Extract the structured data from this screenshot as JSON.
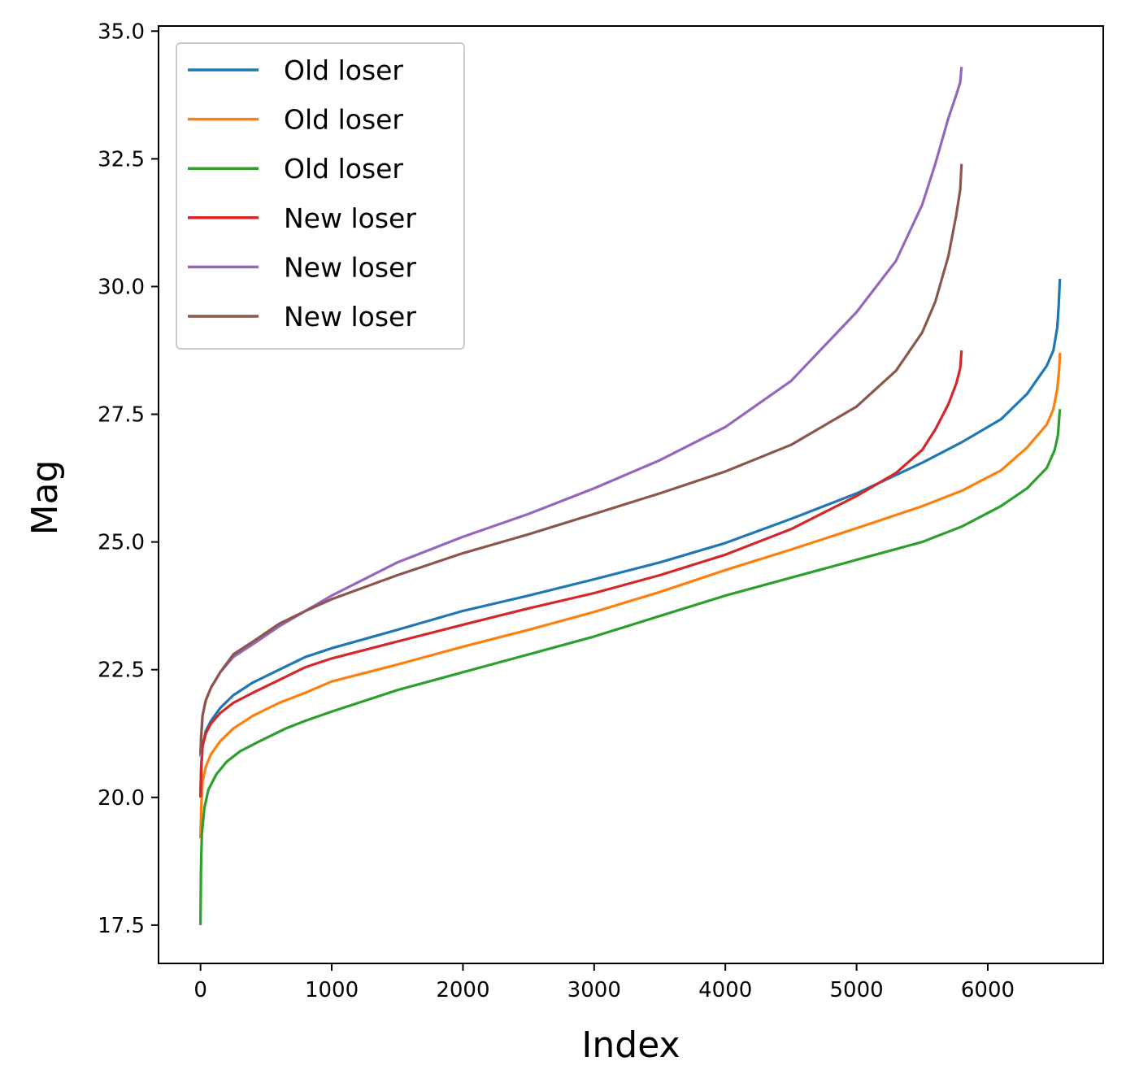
{
  "chart_data": {
    "type": "line",
    "title": "",
    "xlabel": "Index",
    "ylabel": "Mag",
    "xlim": [
      -320,
      6880
    ],
    "ylim": [
      16.75,
      35.1
    ],
    "x_ticks": [
      0,
      1000,
      2000,
      3000,
      4000,
      5000,
      6000
    ],
    "x_tick_labels": [
      "0",
      "1000",
      "2000",
      "3000",
      "4000",
      "5000",
      "6000"
    ],
    "y_ticks": [
      17.5,
      20.0,
      22.5,
      25.0,
      27.5,
      30.0,
      32.5,
      35.0
    ],
    "y_tick_labels": [
      "17.5",
      "20.0",
      "22.5",
      "25.0",
      "27.5",
      "30.0",
      "32.5",
      "35.0"
    ],
    "grid": false,
    "legend_position": "top-left",
    "series": [
      {
        "name": "Old loser",
        "color": "#1f77b4",
        "points": [
          [
            0,
            20.1
          ],
          [
            5,
            20.6
          ],
          [
            15,
            21.0
          ],
          [
            40,
            21.3
          ],
          [
            80,
            21.5
          ],
          [
            150,
            21.75
          ],
          [
            250,
            22.0
          ],
          [
            400,
            22.25
          ],
          [
            600,
            22.5
          ],
          [
            800,
            22.75
          ],
          [
            1000,
            22.92
          ],
          [
            1500,
            23.28
          ],
          [
            2000,
            23.65
          ],
          [
            2500,
            23.95
          ],
          [
            3000,
            24.27
          ],
          [
            3500,
            24.6
          ],
          [
            4000,
            24.98
          ],
          [
            4500,
            25.45
          ],
          [
            5000,
            25.95
          ],
          [
            5500,
            26.55
          ],
          [
            5800,
            26.95
          ],
          [
            6100,
            27.4
          ],
          [
            6300,
            27.9
          ],
          [
            6450,
            28.45
          ],
          [
            6500,
            28.75
          ],
          [
            6530,
            29.2
          ],
          [
            6540,
            29.6
          ],
          [
            6550,
            30.15
          ]
        ]
      },
      {
        "name": "Old loser",
        "color": "#ff7f0e",
        "points": [
          [
            0,
            19.2
          ],
          [
            5,
            19.8
          ],
          [
            15,
            20.3
          ],
          [
            40,
            20.6
          ],
          [
            80,
            20.85
          ],
          [
            150,
            21.1
          ],
          [
            250,
            21.35
          ],
          [
            400,
            21.6
          ],
          [
            600,
            21.85
          ],
          [
            800,
            22.05
          ],
          [
            1000,
            22.27
          ],
          [
            1500,
            22.6
          ],
          [
            2000,
            22.95
          ],
          [
            2500,
            23.28
          ],
          [
            3000,
            23.63
          ],
          [
            3500,
            24.02
          ],
          [
            4000,
            24.45
          ],
          [
            4500,
            24.85
          ],
          [
            5000,
            25.27
          ],
          [
            5500,
            25.7
          ],
          [
            5800,
            26.0
          ],
          [
            6100,
            26.4
          ],
          [
            6300,
            26.85
          ],
          [
            6450,
            27.3
          ],
          [
            6500,
            27.6
          ],
          [
            6530,
            28.0
          ],
          [
            6545,
            28.4
          ],
          [
            6550,
            28.7
          ]
        ]
      },
      {
        "name": "Old loser",
        "color": "#2ca02c",
        "points": [
          [
            0,
            17.5
          ],
          [
            3,
            18.5
          ],
          [
            10,
            19.3
          ],
          [
            30,
            19.8
          ],
          [
            60,
            20.15
          ],
          [
            120,
            20.45
          ],
          [
            200,
            20.7
          ],
          [
            300,
            20.9
          ],
          [
            450,
            21.1
          ],
          [
            650,
            21.35
          ],
          [
            800,
            21.5
          ],
          [
            1000,
            21.68
          ],
          [
            1500,
            22.1
          ],
          [
            2000,
            22.45
          ],
          [
            2500,
            22.8
          ],
          [
            3000,
            23.15
          ],
          [
            3500,
            23.55
          ],
          [
            4000,
            23.95
          ],
          [
            4500,
            24.3
          ],
          [
            5000,
            24.65
          ],
          [
            5500,
            25.0
          ],
          [
            5800,
            25.3
          ],
          [
            6100,
            25.7
          ],
          [
            6300,
            26.05
          ],
          [
            6450,
            26.45
          ],
          [
            6510,
            26.8
          ],
          [
            6535,
            27.1
          ],
          [
            6550,
            27.6
          ]
        ]
      },
      {
        "name": "New loser",
        "color": "#d62728",
        "points": [
          [
            0,
            20.0
          ],
          [
            5,
            20.55
          ],
          [
            15,
            21.0
          ],
          [
            40,
            21.25
          ],
          [
            80,
            21.45
          ],
          [
            150,
            21.65
          ],
          [
            250,
            21.85
          ],
          [
            400,
            22.05
          ],
          [
            600,
            22.3
          ],
          [
            800,
            22.55
          ],
          [
            1000,
            22.72
          ],
          [
            1500,
            23.05
          ],
          [
            2000,
            23.38
          ],
          [
            2500,
            23.7
          ],
          [
            3000,
            24.0
          ],
          [
            3500,
            24.35
          ],
          [
            4000,
            24.75
          ],
          [
            4500,
            25.25
          ],
          [
            5000,
            25.9
          ],
          [
            5300,
            26.35
          ],
          [
            5500,
            26.8
          ],
          [
            5600,
            27.2
          ],
          [
            5700,
            27.7
          ],
          [
            5760,
            28.1
          ],
          [
            5790,
            28.4
          ],
          [
            5800,
            28.75
          ]
        ]
      },
      {
        "name": "New loser",
        "color": "#9467bd",
        "points": [
          [
            0,
            20.8
          ],
          [
            5,
            21.2
          ],
          [
            15,
            21.6
          ],
          [
            40,
            21.9
          ],
          [
            80,
            22.15
          ],
          [
            150,
            22.45
          ],
          [
            250,
            22.75
          ],
          [
            400,
            23.0
          ],
          [
            600,
            23.35
          ],
          [
            800,
            23.65
          ],
          [
            1000,
            23.95
          ],
          [
            1500,
            24.6
          ],
          [
            2000,
            25.1
          ],
          [
            2500,
            25.55
          ],
          [
            3000,
            26.05
          ],
          [
            3500,
            26.6
          ],
          [
            4000,
            27.25
          ],
          [
            4500,
            28.15
          ],
          [
            5000,
            29.5
          ],
          [
            5300,
            30.5
          ],
          [
            5500,
            31.6
          ],
          [
            5600,
            32.4
          ],
          [
            5700,
            33.3
          ],
          [
            5760,
            33.75
          ],
          [
            5790,
            34.0
          ],
          [
            5800,
            34.3
          ]
        ]
      },
      {
        "name": "New loser",
        "color": "#8c564b",
        "points": [
          [
            0,
            20.85
          ],
          [
            5,
            21.2
          ],
          [
            15,
            21.6
          ],
          [
            40,
            21.9
          ],
          [
            80,
            22.15
          ],
          [
            150,
            22.45
          ],
          [
            250,
            22.8
          ],
          [
            400,
            23.05
          ],
          [
            600,
            23.4
          ],
          [
            800,
            23.65
          ],
          [
            1000,
            23.88
          ],
          [
            1500,
            24.35
          ],
          [
            2000,
            24.78
          ],
          [
            2500,
            25.15
          ],
          [
            3000,
            25.55
          ],
          [
            3500,
            25.95
          ],
          [
            4000,
            26.38
          ],
          [
            4500,
            26.9
          ],
          [
            5000,
            27.65
          ],
          [
            5300,
            28.35
          ],
          [
            5500,
            29.1
          ],
          [
            5600,
            29.7
          ],
          [
            5700,
            30.6
          ],
          [
            5760,
            31.4
          ],
          [
            5790,
            31.9
          ],
          [
            5800,
            32.4
          ]
        ]
      }
    ]
  }
}
